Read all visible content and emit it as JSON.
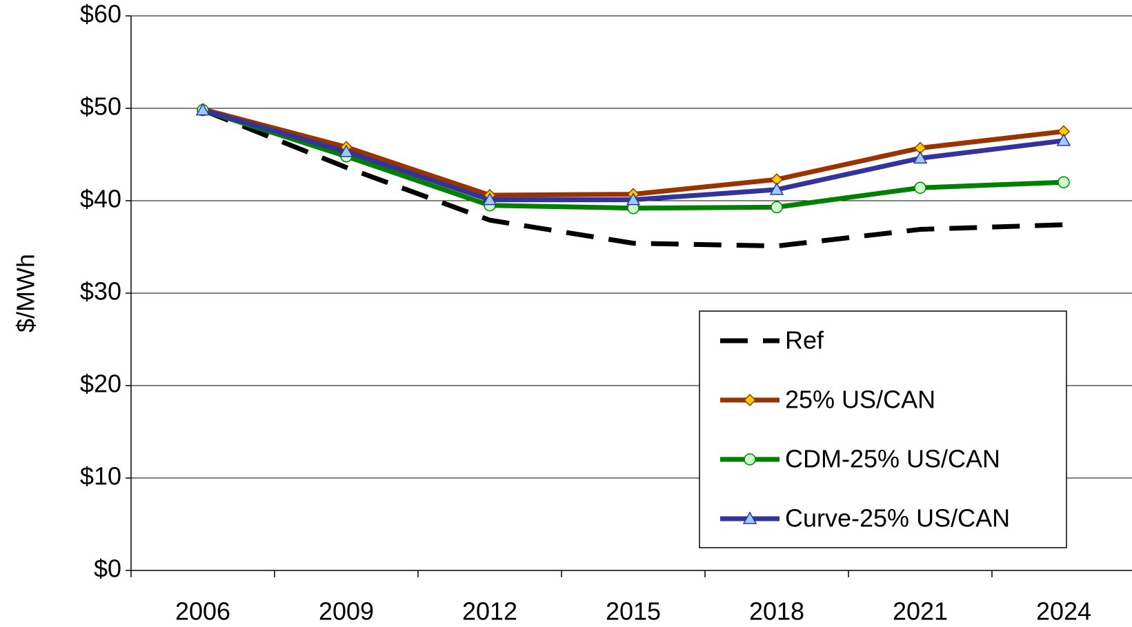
{
  "chart_data": {
    "type": "line",
    "y_label": "$/MWh",
    "categories": [
      "2006",
      "2009",
      "2012",
      "2015",
      "2018",
      "2021",
      "2024"
    ],
    "ylim": [
      0,
      60
    ],
    "yticks": [
      {
        "value": 0,
        "label": "$0"
      },
      {
        "value": 10,
        "label": "$10"
      },
      {
        "value": 20,
        "label": "$20"
      },
      {
        "value": 30,
        "label": "$30"
      },
      {
        "value": 40,
        "label": "$40"
      },
      {
        "value": 50,
        "label": "$50"
      },
      {
        "value": 60,
        "label": "$60"
      }
    ],
    "grid": true,
    "legend": "lower right",
    "series": [
      {
        "name": "Ref",
        "color": "#000000",
        "dash": true,
        "marker": null,
        "values": [
          49.8,
          43.6,
          37.9,
          35.4,
          35.1,
          36.9,
          37.4
        ]
      },
      {
        "name": "25% US/CAN",
        "color": "#993300",
        "marker": "diamond",
        "marker_fill": "#ffcc00",
        "values": [
          49.9,
          45.8,
          40.6,
          40.7,
          42.3,
          45.7,
          47.5
        ]
      },
      {
        "name": "CDM-25% US/CAN",
        "color": "#008000",
        "marker": "circle",
        "marker_fill": "#ccffcc",
        "values": [
          49.8,
          44.8,
          39.5,
          39.2,
          39.3,
          41.4,
          42.0
        ]
      },
      {
        "name": "Curve-25% US/CAN",
        "color": "#333399",
        "marker": "triangle",
        "marker_fill": "#99ccff",
        "values": [
          49.8,
          45.3,
          40.1,
          40.1,
          41.2,
          44.6,
          46.5
        ]
      }
    ]
  }
}
